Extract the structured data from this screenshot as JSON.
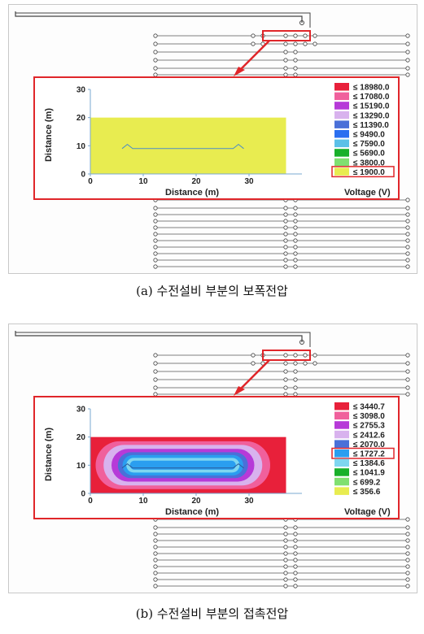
{
  "figure_a": {
    "caption": "(a) 수전설비 부분의 보폭전압",
    "chart_data": {
      "type": "heatmap",
      "xlabel": "Distance (m)",
      "ylabel": "Distance (m)",
      "xlim": [
        0,
        40
      ],
      "ylim": [
        0,
        30
      ],
      "x_ticks": [
        "0",
        "10",
        "20",
        "30"
      ],
      "y_ticks": [
        "0",
        "10",
        "20",
        "30"
      ],
      "legend_title": "Voltage (V)",
      "legend": [
        {
          "label": "≤ 18980.0",
          "color": "#e8203a"
        },
        {
          "label": "≤ 17080.0",
          "color": "#f0609c"
        },
        {
          "label": "≤ 15190.0",
          "color": "#b63ad8"
        },
        {
          "label": "≤ 13290.0",
          "color": "#d8b2ee"
        },
        {
          "label": "≤ 11390.0",
          "color": "#4a70d8"
        },
        {
          "label": "≤ 9490.0",
          "color": "#2a6ef0"
        },
        {
          "label": "≤ 7590.0",
          "color": "#5bc0e8"
        },
        {
          "label": "≤ 5690.0",
          "color": "#18b02a"
        },
        {
          "label": "≤ 3800.0",
          "color": "#80e070"
        },
        {
          "label": "≤ 1900.0",
          "color": "#e8ec50"
        }
      ],
      "highlighted_legend_item": "≤ 1900.0"
    }
  },
  "figure_b": {
    "caption": "(b) 수전설비 부분의 접촉전압",
    "chart_data": {
      "type": "heatmap",
      "xlabel": "Distance (m)",
      "ylabel": "Distance (m)",
      "xlim": [
        0,
        40
      ],
      "ylim": [
        0,
        30
      ],
      "x_ticks": [
        "0",
        "10",
        "20",
        "30"
      ],
      "y_ticks": [
        "0",
        "10",
        "20",
        "30"
      ],
      "legend_title": "Voltage (V)",
      "legend": [
        {
          "label": "≤ 3440.7",
          "color": "#e8203a"
        },
        {
          "label": "≤ 3098.0",
          "color": "#f0609c"
        },
        {
          "label": "≤ 2755.3",
          "color": "#b63ad8"
        },
        {
          "label": "≤ 2412.6",
          "color": "#d8b2ee"
        },
        {
          "label": "≤ 2070.0",
          "color": "#4a70d8"
        },
        {
          "label": "≤ 1727.2",
          "color": "#2a9ef0"
        },
        {
          "label": "≤ 1384.6",
          "color": "#7fd6f0"
        },
        {
          "label": "≤ 1041.9",
          "color": "#18b02a"
        },
        {
          "label": "≤ 699.2",
          "color": "#80e070"
        },
        {
          "label": "≤ 356.6",
          "color": "#e8ec50"
        }
      ],
      "highlighted_legend_item": "≤ 1727.2"
    }
  }
}
